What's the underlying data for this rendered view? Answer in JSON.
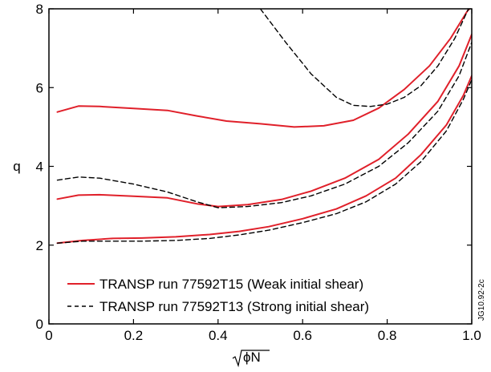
{
  "chart_data": {
    "type": "line",
    "xlabel": "ϕN",
    "ylabel": "q",
    "xlim": [
      0,
      1.0
    ],
    "ylim": [
      0,
      8
    ],
    "x_ticks": [
      "0",
      "0.2",
      "0.4",
      "0.6",
      "0.8",
      "1.0"
    ],
    "y_ticks": [
      "0",
      "2",
      "4",
      "6",
      "8"
    ],
    "x_tick_values": [
      0,
      0.2,
      0.4,
      0.6,
      0.8,
      1.0
    ],
    "y_tick_values": [
      0,
      2,
      4,
      6,
      8
    ],
    "grid": false,
    "legend_position": "bottom-left",
    "figure_code": "JG10.92-2c",
    "legend": [
      {
        "label": "TRANSP run 77592T15 (Weak initial shear)",
        "style": "solid",
        "color": "#e0202a"
      },
      {
        "label": "TRANSP run 77592T13 (Strong initial shear)",
        "style": "dashed",
        "color": "#000000"
      }
    ],
    "series": [
      {
        "group": "TRANSP run 77592T15 (Weak initial shear)",
        "style": "solid",
        "color": "#e0202a",
        "x": [
          0.02,
          0.07,
          0.12,
          0.2,
          0.28,
          0.35,
          0.42,
          0.5,
          0.58,
          0.65,
          0.72,
          0.78,
          0.84,
          0.9,
          0.95,
          0.99,
          1.0
        ],
        "y": [
          5.38,
          5.53,
          5.52,
          5.47,
          5.42,
          5.28,
          5.15,
          5.08,
          5.0,
          5.03,
          5.17,
          5.48,
          5.95,
          6.55,
          7.25,
          7.95,
          8.05
        ]
      },
      {
        "group": "TRANSP run 77592T15 (Weak initial shear)",
        "style": "solid",
        "color": "#e0202a",
        "x": [
          0.02,
          0.07,
          0.12,
          0.2,
          0.28,
          0.35,
          0.4,
          0.47,
          0.55,
          0.62,
          0.7,
          0.78,
          0.85,
          0.92,
          0.97,
          1.0
        ],
        "y": [
          3.17,
          3.27,
          3.28,
          3.24,
          3.2,
          3.05,
          2.98,
          3.03,
          3.16,
          3.37,
          3.7,
          4.18,
          4.82,
          5.65,
          6.55,
          7.35
        ]
      },
      {
        "group": "TRANSP run 77592T15 (Weak initial shear)",
        "style": "solid",
        "color": "#e0202a",
        "x": [
          0.02,
          0.08,
          0.15,
          0.22,
          0.3,
          0.38,
          0.45,
          0.52,
          0.6,
          0.68,
          0.75,
          0.82,
          0.88,
          0.94,
          0.98,
          1.0
        ],
        "y": [
          2.05,
          2.12,
          2.17,
          2.18,
          2.21,
          2.27,
          2.35,
          2.47,
          2.67,
          2.92,
          3.25,
          3.7,
          4.3,
          5.05,
          5.8,
          6.3
        ]
      },
      {
        "group": "TRANSP run 77592T13 (Strong initial shear)",
        "style": "dashed",
        "color": "#000000",
        "x": [
          0.5,
          0.56,
          0.62,
          0.68,
          0.72,
          0.76,
          0.8,
          0.84,
          0.88,
          0.92,
          0.96,
          0.99,
          1.0
        ],
        "y": [
          8.0,
          7.15,
          6.35,
          5.75,
          5.55,
          5.52,
          5.58,
          5.75,
          6.05,
          6.55,
          7.25,
          7.95,
          8.1
        ]
      },
      {
        "group": "TRANSP run 77592T13 (Strong initial shear)",
        "style": "dashed",
        "color": "#000000",
        "x": [
          0.02,
          0.07,
          0.12,
          0.2,
          0.28,
          0.35,
          0.4,
          0.47,
          0.55,
          0.62,
          0.7,
          0.78,
          0.85,
          0.92,
          0.97,
          1.0
        ],
        "y": [
          3.65,
          3.73,
          3.7,
          3.55,
          3.35,
          3.1,
          2.95,
          2.98,
          3.08,
          3.25,
          3.55,
          4.0,
          4.6,
          5.4,
          6.3,
          7.15
        ]
      },
      {
        "group": "TRANSP run 77592T13 (Strong initial shear)",
        "style": "dashed",
        "color": "#000000",
        "x": [
          0.02,
          0.08,
          0.15,
          0.22,
          0.3,
          0.38,
          0.45,
          0.52,
          0.6,
          0.68,
          0.75,
          0.82,
          0.88,
          0.94,
          0.98,
          1.0
        ],
        "y": [
          2.05,
          2.1,
          2.1,
          2.1,
          2.12,
          2.17,
          2.26,
          2.38,
          2.57,
          2.8,
          3.1,
          3.55,
          4.12,
          4.9,
          5.7,
          6.2
        ]
      }
    ]
  }
}
